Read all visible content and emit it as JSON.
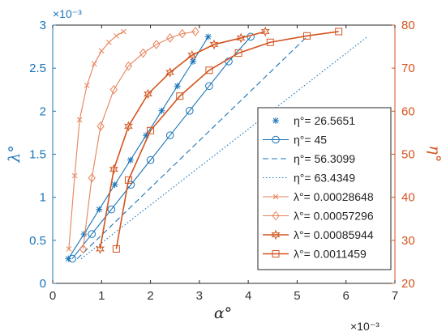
{
  "chart_data": {
    "type": "line",
    "xlabel": "α°",
    "ylabel_left": "λ°",
    "ylabel_right": "η°",
    "x_exponent": "×10⁻³",
    "yleft_exponent": "×10⁻³",
    "xlim": [
      0,
      7
    ],
    "ylim_left": [
      0,
      3
    ],
    "ylim_right": [
      20,
      80
    ],
    "xticks": [
      "0",
      "1",
      "2",
      "3",
      "4",
      "5",
      "6",
      "7"
    ],
    "yticks_left": [
      "0",
      "0.5",
      "1",
      "1.5",
      "2",
      "2.5",
      "3"
    ],
    "yticks_right": [
      "20",
      "30",
      "40",
      "50",
      "60",
      "70",
      "80"
    ],
    "legend_position": "bottom-right",
    "colors": {
      "blue": "#1a75b8",
      "orange": "#d3541f",
      "orange_light": "#e6825a"
    },
    "series": [
      {
        "name": "η°= 26.5651",
        "axis": "left",
        "color": "#1a75b8",
        "marker": "star",
        "dash": "solid",
        "x": [
          0.32,
          0.64,
          0.95,
          1.27,
          1.59,
          1.91,
          2.23,
          2.55,
          2.87,
          3.18
        ],
        "y": [
          0.286,
          0.573,
          0.859,
          1.146,
          1.432,
          1.719,
          2.005,
          2.292,
          2.578,
          2.865
        ]
      },
      {
        "name": "η°= 45",
        "axis": "left",
        "color": "#1a75b8",
        "marker": "circle",
        "dash": "solid",
        "x": [
          0.4,
          0.8,
          1.2,
          1.6,
          2.0,
          2.4,
          2.8,
          3.2,
          3.6,
          4.05
        ],
        "y": [
          0.286,
          0.573,
          0.859,
          1.146,
          1.432,
          1.719,
          2.005,
          2.292,
          2.578,
          2.865
        ]
      },
      {
        "name": "η°= 56.3099",
        "axis": "left",
        "color": "#1a75b8",
        "marker": "none",
        "dash": "dashed",
        "x": [
          0.5,
          5.2
        ],
        "y": [
          0.286,
          2.865
        ]
      },
      {
        "name": "η°= 63.4349",
        "axis": "left",
        "color": "#1a75b8",
        "marker": "none",
        "dash": "dotted",
        "x": [
          0.58,
          6.45
        ],
        "y": [
          0.286,
          2.87
        ]
      },
      {
        "name": "λ°= 0.00028648",
        "axis": "right",
        "color": "#e6825a",
        "marker": "x",
        "dash": "solid",
        "x": [
          0.33,
          0.45,
          0.55,
          0.7,
          0.85,
          1.0,
          1.15,
          1.3,
          1.45
        ],
        "y": [
          28.0,
          45.0,
          58.0,
          66.0,
          71.0,
          74.0,
          76.0,
          77.5,
          78.5
        ]
      },
      {
        "name": "λ°= 0.00057296",
        "axis": "right",
        "color": "#e6825a",
        "marker": "diamond",
        "dash": "solid",
        "x": [
          0.62,
          0.8,
          0.98,
          1.25,
          1.55,
          1.85,
          2.12,
          2.4,
          2.65,
          2.92
        ],
        "y": [
          28.0,
          44.5,
          56.5,
          65.0,
          70.5,
          73.5,
          75.5,
          77.0,
          78.0,
          78.5
        ]
      },
      {
        "name": "λ°= 0.00085944",
        "axis": "right",
        "color": "#d3541f",
        "marker": "star-hex",
        "dash": "solid",
        "x": [
          0.97,
          1.25,
          1.55,
          1.95,
          2.4,
          2.85,
          3.3,
          3.85,
          4.35
        ],
        "y": [
          28.0,
          46.5,
          56.5,
          64.0,
          69.0,
          73.0,
          75.5,
          77.0,
          78.5
        ]
      },
      {
        "name": "λ°= 0.0011459",
        "axis": "right",
        "color": "#d3541f",
        "marker": "square",
        "dash": "solid",
        "x": [
          1.3,
          1.55,
          2.0,
          2.6,
          3.2,
          3.8,
          4.45,
          5.2,
          5.85
        ],
        "y": [
          28.0,
          44.0,
          55.5,
          63.5,
          69.5,
          73.5,
          76.0,
          77.5,
          78.5
        ]
      }
    ]
  }
}
